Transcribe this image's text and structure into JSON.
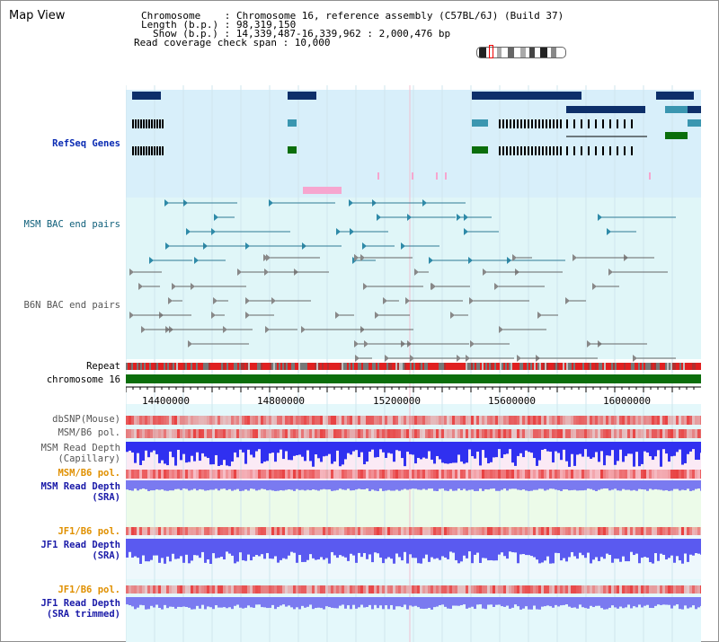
{
  "title": "Map View",
  "header": {
    "chromosome_label": "Chromosome    : Chromosome 16, reference assembly (C57BL/6J) (Build 37)",
    "length_label": "Length (b.p.) : 98,319,150",
    "show_label": "Show (b.p.) : 14,339,487-16,339,962 : 2,000,476 bp",
    "read_coverage_label": "Read coverage check span : 10,000"
  },
  "tracks": {
    "refseq": "RefSeq Genes",
    "msm_bac": "MSM BAC end pairs",
    "b6n_bac": "B6N BAC end pairs",
    "repeat": "Repeat",
    "chromosome": "chromosome 16",
    "dbsnp": "dbSNP(Mouse)",
    "msm_b6_pol_1": "MSM/B6 pol.",
    "msm_read_depth_cap_1": "MSM Read Depth",
    "msm_read_depth_cap_2": "(Capillary)",
    "msm_b6_pol_2": "MSM/B6 pol.",
    "msm_read_depth_sra_1": "MSM Read Depth",
    "msm_read_depth_sra_2": "(SRA)",
    "jf1_b6_pol_1": "JF1/B6 pol.",
    "jf1_read_depth_1": "JF1 Read Depth",
    "jf1_read_depth_2": "(SRA)",
    "jf1_b6_pol_2": "JF1/B6 pol.",
    "jf1_read_depth_trim_1": "JF1 Read Depth",
    "jf1_read_depth_trim_2": "(SRA trimmed)"
  },
  "axis": {
    "ticks": [
      "14400000",
      "14800000",
      "15200000",
      "15600000",
      "16000000"
    ]
  },
  "colors": {
    "refseq_bg": "#d8effa",
    "bac_bg": "#e0f6f8",
    "navy": "#0d2f6a",
    "teal": "#3a96b0",
    "green": "#0b6e0b",
    "chromosome": "#0b6e0b",
    "pol_red": "#e84040",
    "depth_blue": "#3a3af0"
  }
}
